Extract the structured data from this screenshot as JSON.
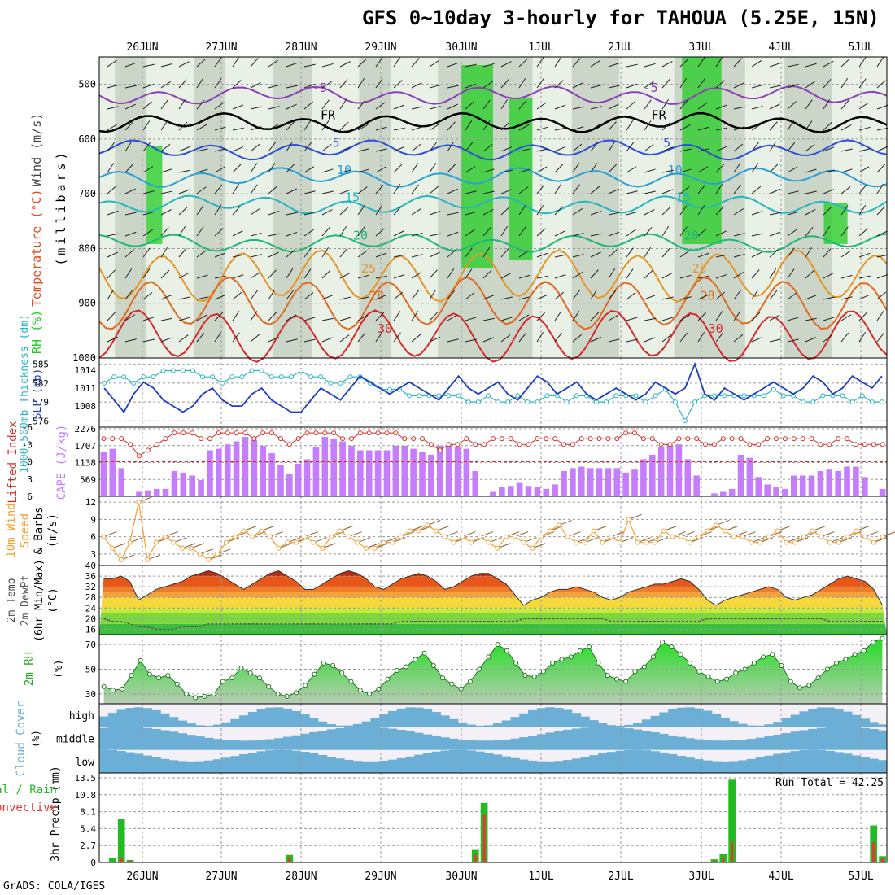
{
  "title": "GFS 0~10day 3-hourly for TAHOUA (5.25E, 15N)",
  "credit": "GrADS: COLA/IGES",
  "date_labels": [
    "26JUN",
    "27JUN",
    "28JUN",
    "29JUN",
    "30JUN",
    "1JUL",
    "2JUL",
    "3JUL",
    "4JUL",
    "5JUL"
  ],
  "colors": {
    "rh": "#22cc22",
    "cloud": "#6baed6",
    "cape": "#c77dff",
    "lifted": "#d73027",
    "slp": "#1f3fbf",
    "thick": "#2cb5c0",
    "wind": "#f5a033",
    "temp": "#e34a1a",
    "dewpt": "#555555",
    "precip_total": "#22bb22",
    "precip_conv": "#ee3333"
  },
  "chart_data": [
    {
      "type": "heatmap",
      "panel": "upper-air",
      "ylabel_parts": [
        "RH (%)",
        "Temperature (°C)",
        "Wind (m/s)",
        "(millibars)"
      ],
      "y_ticks": [
        500,
        600,
        700,
        800,
        900,
        1000
      ],
      "ylim": [
        1000,
        450
      ],
      "isotherms": [
        {
          "label": "-5",
          "level": 520,
          "color": "#8b3fb6"
        },
        {
          "label": "FR",
          "level": 570,
          "color": "#000000"
        },
        {
          "label": "5",
          "level": 620,
          "color": "#2a4fd6"
        },
        {
          "label": "10",
          "level": 670,
          "color": "#2a9fd6"
        },
        {
          "label": "15",
          "level": 720,
          "color": "#25b5c0"
        },
        {
          "label": "20",
          "level": 790,
          "color": "#1fb67a"
        },
        {
          "label": "25",
          "level": 850,
          "color": "#e3962a"
        },
        {
          "label": "28",
          "level": 900,
          "color": "#e06a22"
        },
        {
          "label": "30",
          "level": 960,
          "color": "#d62a2a"
        }
      ]
    },
    {
      "type": "line",
      "panel": "slp-thickness",
      "ylabel": "1000-500mb Thickness (dm)",
      "ylabel2": "SLP (mb)",
      "thick_ticks": [
        576,
        579,
        582,
        585
      ],
      "slp_ticks": [
        1008,
        1011,
        1014
      ],
      "series": [
        {
          "name": "SLP",
          "values": [
            1011,
            1009,
            1007,
            1010,
            1012,
            1011,
            1009,
            1008,
            1007,
            1008,
            1010,
            1011,
            1009,
            1008,
            1008,
            1010,
            1011,
            1009,
            1008,
            1007,
            1007,
            1009,
            1011,
            1010,
            1009,
            1011,
            1013,
            1012,
            1011,
            1010,
            1011,
            1012,
            1011,
            1010,
            1009,
            1011,
            1013,
            1011,
            1010,
            1011,
            1012,
            1010,
            1009,
            1011,
            1013,
            1012,
            1010,
            1011,
            1012,
            1010,
            1009,
            1010,
            1011,
            1010,
            1009,
            1010,
            1012,
            1011,
            1010,
            1011,
            1015,
            1010,
            1009,
            1011,
            1010,
            1009,
            1010,
            1011,
            1012,
            1011,
            1010,
            1011,
            1013,
            1012,
            1010,
            1011,
            1013,
            1012,
            1011,
            1013
          ]
        },
        {
          "name": "Thickness",
          "values": [
            582,
            583,
            583,
            582,
            583,
            583,
            584,
            584,
            584,
            584,
            583,
            583,
            582,
            583,
            583,
            584,
            584,
            583,
            583,
            583,
            584,
            583,
            583,
            582,
            582,
            583,
            583,
            582,
            581,
            581,
            581,
            580,
            580,
            580,
            580,
            580,
            580,
            579,
            579,
            580,
            579,
            579,
            580,
            579,
            579,
            580,
            580,
            579,
            580,
            580,
            579,
            579,
            580,
            580,
            580,
            579,
            580,
            581,
            579,
            576,
            579,
            580,
            580,
            580,
            580,
            580,
            580,
            580,
            581,
            580,
            580,
            579,
            579,
            580,
            580,
            580,
            579,
            580,
            579,
            579
          ]
        }
      ]
    },
    {
      "type": "bar",
      "panel": "cape-lifted",
      "ylabel": "Lifted Index",
      "ylabel2": "CAPE (J/kg)",
      "cape_ticks": [
        569,
        1138,
        1707,
        2276
      ],
      "li_ticks": [
        -6,
        -3,
        0,
        3,
        6
      ],
      "series": [
        {
          "name": "CAPE",
          "values": [
            1500,
            1600,
            950,
            0,
            150,
            200,
            250,
            250,
            850,
            800,
            700,
            550,
            1550,
            1600,
            1750,
            1850,
            2000,
            1900,
            1700,
            1450,
            1050,
            750,
            1100,
            1250,
            1650,
            2000,
            1950,
            1850,
            1700,
            1550,
            1550,
            1550,
            1550,
            1700,
            1700,
            1600,
            1500,
            1400,
            1700,
            1700,
            1650,
            1600,
            850,
            0,
            150,
            300,
            350,
            450,
            350,
            300,
            250,
            400,
            850,
            950,
            1000,
            950,
            950,
            950,
            950,
            800,
            900,
            1250,
            1400,
            1650,
            1700,
            1750,
            1250,
            700,
            0,
            100,
            150,
            250,
            1400,
            1300,
            650,
            400,
            300,
            250,
            700,
            700,
            700,
            850,
            900,
            850,
            1000,
            1000,
            650,
            0,
            250
          ]
        },
        {
          "name": "Lifted Index",
          "values": [
            -4,
            -4,
            -4,
            -3,
            -1,
            -2,
            -3,
            -4,
            -5,
            -5,
            -5,
            -4,
            -4,
            -5,
            -5,
            -5,
            -5,
            -4,
            -5,
            -5,
            -4,
            -3,
            -4,
            -5,
            -5,
            -5,
            -5,
            -4,
            -4,
            -5,
            -5,
            -5,
            -5,
            -5,
            -4,
            -4,
            -4,
            -3,
            -2,
            -3,
            -3,
            -4,
            -3,
            -3,
            -4,
            -4,
            -4,
            -3,
            -3,
            -4,
            -4,
            -4,
            -3,
            -3,
            -4,
            -4,
            -4,
            -4,
            -4,
            -5,
            -5,
            -4,
            -4,
            -3,
            -3,
            -4,
            -4,
            -4,
            -3,
            -3,
            -4,
            -4,
            -4,
            -3,
            -3,
            -4,
            -4,
            -4,
            -4,
            -4,
            -4,
            -3,
            -3,
            -4,
            -4,
            -3,
            -3,
            -3,
            -3
          ]
        }
      ]
    },
    {
      "type": "line",
      "panel": "wind10m",
      "ylabel_parts": [
        "10m Wind",
        "Speed",
        "& Barbs",
        "(m/s)"
      ],
      "y_ticks": [
        3,
        6,
        9,
        12
      ],
      "series": [
        {
          "name": "10m Wind Speed",
          "values": [
            6,
            4,
            2,
            5,
            12,
            2,
            5,
            6,
            5,
            4,
            4,
            3,
            2,
            3,
            5,
            6,
            7,
            6,
            7,
            6,
            4,
            5,
            5,
            6,
            5,
            4,
            6,
            7,
            6,
            5,
            4,
            4,
            5,
            5,
            6,
            7,
            7,
            8,
            7,
            6,
            5,
            6,
            5,
            6,
            5,
            4,
            6,
            6,
            5,
            4,
            6,
            7,
            8,
            6,
            5,
            5,
            7,
            5,
            6,
            5,
            9,
            5,
            5,
            5,
            7,
            6,
            6,
            5,
            6,
            7,
            8,
            7,
            6,
            6,
            5,
            5,
            6,
            7,
            5,
            5,
            6,
            7,
            6,
            5,
            5,
            6,
            7,
            6,
            5,
            6
          ]
        }
      ]
    },
    {
      "type": "area",
      "panel": "temp-dewpt",
      "ylabel_parts": [
        "2m Temp",
        "2m DewPt",
        "(6hr Min/Max)",
        "(°C)"
      ],
      "y_ticks": [
        16,
        20,
        24,
        28,
        32,
        36,
        40
      ],
      "series": [
        {
          "name": "2m Temp",
          "values": [
            35,
            35,
            36,
            34,
            27,
            29,
            31,
            32,
            33,
            34,
            36,
            37,
            38,
            37,
            35,
            33,
            31,
            33,
            35,
            37,
            38,
            36,
            34,
            31,
            31,
            33,
            35,
            37,
            38,
            37,
            35,
            32,
            31,
            33,
            35,
            36,
            37,
            36,
            34,
            31,
            32,
            34,
            36,
            37,
            37,
            35,
            33,
            29,
            25,
            27,
            28,
            30,
            31,
            31,
            32,
            31,
            30,
            28,
            27,
            28,
            30,
            31,
            32,
            33,
            33,
            34,
            35,
            34,
            31,
            27,
            25,
            27,
            28,
            29,
            30,
            31,
            32,
            31,
            28,
            27,
            28,
            29,
            31,
            33,
            35,
            36,
            35,
            34,
            31,
            25
          ]
        },
        {
          "name": "2m DewPt",
          "values": [
            20,
            19,
            19,
            18,
            17,
            17,
            16,
            16,
            16,
            17,
            17,
            17,
            18,
            18,
            18,
            18,
            18,
            18,
            18,
            18,
            18,
            18,
            18,
            18,
            18,
            18,
            18,
            18,
            18,
            18,
            18,
            18,
            18,
            18,
            19,
            19,
            19,
            19,
            19,
            19,
            19,
            19,
            19,
            19,
            19,
            19,
            19,
            19,
            20,
            20,
            20,
            20,
            20,
            20,
            20,
            20,
            20,
            20,
            19,
            19,
            19,
            19,
            19,
            19,
            19,
            19,
            19,
            19,
            19,
            20,
            20,
            20,
            20,
            20,
            20,
            20,
            20,
            20,
            20,
            20,
            20,
            20,
            20,
            19,
            19,
            19,
            19,
            19,
            19,
            19
          ]
        }
      ]
    },
    {
      "type": "area",
      "panel": "rh2m",
      "ylabel": "2m RH",
      "yunit": "(%)",
      "y_ticks": [
        30,
        50,
        70
      ],
      "series": [
        {
          "name": "2m RH",
          "values": [
            36,
            33,
            34,
            45,
            57,
            46,
            43,
            45,
            38,
            30,
            27,
            28,
            30,
            40,
            43,
            51,
            47,
            43,
            36,
            30,
            28,
            31,
            37,
            46,
            55,
            53,
            47,
            40,
            33,
            30,
            34,
            42,
            49,
            52,
            58,
            63,
            53,
            43,
            38,
            34,
            40,
            50,
            60,
            70,
            65,
            55,
            45,
            44,
            48,
            55,
            58,
            60,
            65,
            68,
            55,
            45,
            42,
            40,
            48,
            52,
            60,
            72,
            68,
            62,
            55,
            48,
            44,
            40,
            42,
            47,
            50,
            55,
            60,
            62,
            53,
            40,
            35,
            37,
            43,
            50,
            55,
            58,
            62,
            65,
            72,
            75
          ]
        }
      ]
    },
    {
      "type": "heatmap",
      "panel": "cloud-cover",
      "ylabel": "Cloud Cover",
      "yunit": "(%)",
      "levels": [
        "high",
        "middle",
        "low"
      ]
    },
    {
      "type": "bar",
      "panel": "precip",
      "ylabel_parts": [
        "3hr Precip (mm)",
        "Total / Rain",
        "Convective"
      ],
      "y_ticks": [
        0,
        2.7,
        5.4,
        8.1,
        10.8,
        13.5
      ],
      "run_total_label": "Run Total = 42.25",
      "series": [
        {
          "name": "Total",
          "values": [
            0,
            0.7,
            6.9,
            0.4,
            0,
            0,
            0,
            0,
            0,
            0,
            0,
            0,
            0,
            0,
            0,
            0,
            0,
            0,
            0,
            0,
            0,
            1.2,
            0,
            0,
            0,
            0,
            0,
            0,
            0,
            0,
            0,
            0,
            0,
            0,
            0,
            0,
            0,
            0,
            0,
            0,
            0,
            0,
            2,
            9.5,
            0.1,
            0,
            0,
            0,
            0,
            0,
            0,
            0,
            0,
            0,
            0,
            0,
            0,
            0,
            0,
            0,
            0,
            0,
            0,
            0,
            0,
            0,
            0,
            0,
            0,
            0.5,
            1.3,
            13.2,
            0,
            0,
            0,
            0,
            0,
            0,
            0,
            0,
            0,
            0,
            0,
            0,
            0,
            0,
            0,
            5.9,
            1
          ]
        },
        {
          "name": "Convective",
          "values": [
            0,
            0,
            0.8,
            0.3,
            0,
            0,
            0,
            0,
            0,
            0,
            0,
            0,
            0,
            0,
            0,
            0,
            0,
            0,
            0,
            0,
            0,
            0.9,
            0,
            0,
            0,
            0,
            0,
            0,
            0,
            0,
            0,
            0,
            0,
            0,
            0,
            0,
            0,
            0,
            0,
            0,
            0,
            0,
            1.4,
            7.6,
            0,
            0,
            0,
            0,
            0,
            0,
            0,
            0,
            0,
            0,
            0,
            0,
            0,
            0,
            0,
            0,
            0,
            0,
            0,
            0,
            0,
            0,
            0,
            0,
            0,
            0.3,
            0.9,
            3.3,
            0,
            0,
            0,
            0,
            0,
            0,
            0,
            0,
            0,
            0,
            0,
            0,
            0,
            0,
            0,
            3.2,
            0.7
          ]
        }
      ]
    }
  ]
}
